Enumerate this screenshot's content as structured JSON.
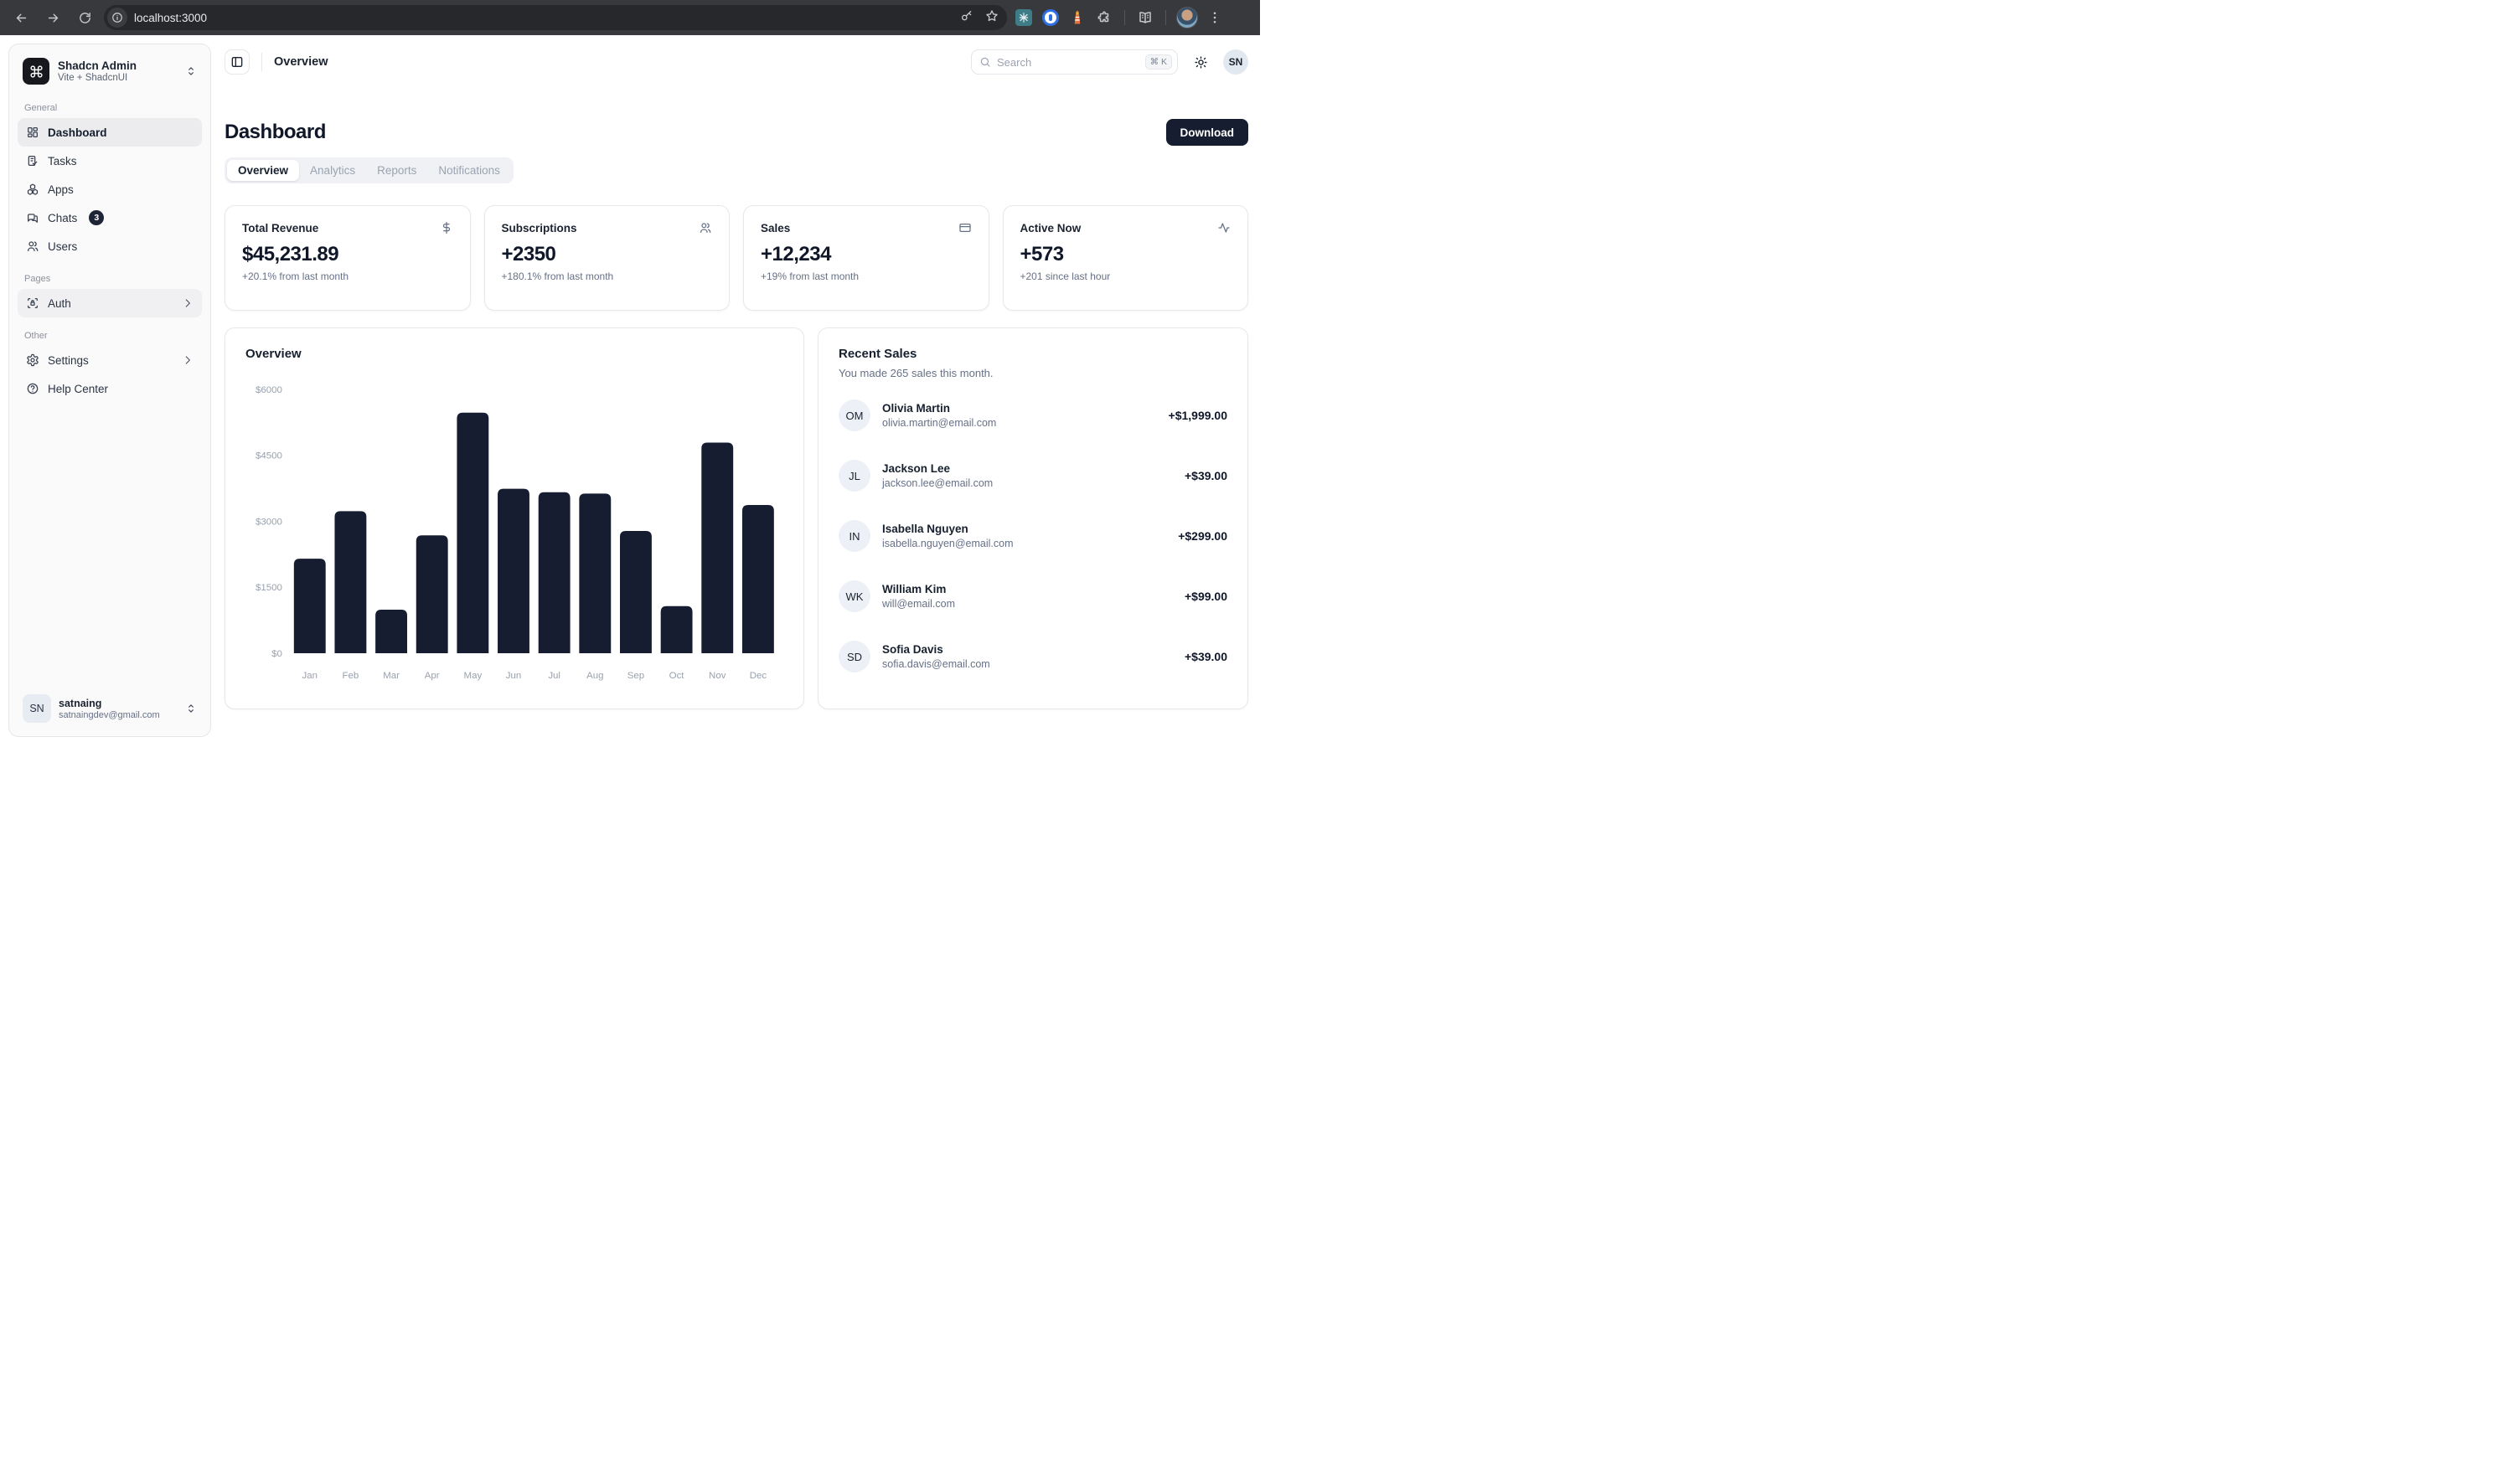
{
  "browser": {
    "url": "localhost:3000",
    "icons": [
      "back",
      "forward",
      "reload",
      "info",
      "key",
      "star",
      "extension-teal",
      "extension-1password",
      "extension-lighthouse",
      "extensions-puzzle",
      "reading-list-book",
      "profile-avatar",
      "menu-dots"
    ]
  },
  "sidebar": {
    "team": {
      "name": "Shadcn Admin",
      "subtitle": "Vite + ShadcnUI",
      "logo_icon": "command"
    },
    "groups": [
      {
        "label": "General",
        "items": [
          {
            "label": "Dashboard",
            "icon": "layout-dashboard",
            "active": true
          },
          {
            "label": "Tasks",
            "icon": "tasks"
          },
          {
            "label": "Apps",
            "icon": "apps"
          },
          {
            "label": "Chats",
            "icon": "messages",
            "badge": "3"
          },
          {
            "label": "Users",
            "icon": "users"
          }
        ]
      },
      {
        "label": "Pages",
        "items": [
          {
            "label": "Auth",
            "icon": "shield-lock",
            "chevron": true,
            "highlight": true
          }
        ]
      },
      {
        "label": "Other",
        "items": [
          {
            "label": "Settings",
            "icon": "settings",
            "chevron": true
          },
          {
            "label": "Help Center",
            "icon": "help-circle"
          }
        ]
      }
    ],
    "user": {
      "initials": "SN",
      "name": "satnaing",
      "email": "satnaingdev@gmail.com"
    }
  },
  "header": {
    "breadcrumb": "Overview",
    "search": {
      "placeholder": "Search",
      "shortcut": "⌘ K"
    },
    "avatar_initials": "SN"
  },
  "page": {
    "title": "Dashboard",
    "download_label": "Download"
  },
  "tabs": [
    {
      "label": "Overview",
      "active": true
    },
    {
      "label": "Analytics",
      "active": false
    },
    {
      "label": "Reports",
      "active": false
    },
    {
      "label": "Notifications",
      "active": false
    }
  ],
  "stats": [
    {
      "label": "Total Revenue",
      "icon": "dollar-sign",
      "value": "$45,231.89",
      "change": "+20.1% from last month"
    },
    {
      "label": "Subscriptions",
      "icon": "users",
      "value": "+2350",
      "change": "+180.1% from last month"
    },
    {
      "label": "Sales",
      "icon": "credit-card",
      "value": "+12,234",
      "change": "+19% from last month"
    },
    {
      "label": "Active Now",
      "icon": "activity",
      "value": "+573",
      "change": "+201 since last hour"
    }
  ],
  "chart_data": {
    "type": "bar",
    "title": "Overview",
    "categories": [
      "Jan",
      "Feb",
      "Mar",
      "Apr",
      "May",
      "Jun",
      "Jul",
      "Aug",
      "Sep",
      "Oct",
      "Nov",
      "Dec"
    ],
    "values": [
      2150,
      3230,
      990,
      2680,
      5470,
      3740,
      3660,
      3630,
      2780,
      1070,
      4790,
      3370
    ],
    "y_ticks": [
      "$0",
      "$1500",
      "$3000",
      "$4500",
      "$6000"
    ],
    "ylim": [
      0,
      6000
    ],
    "xlabel": "",
    "ylabel": "",
    "grid": false,
    "legend": false,
    "bar_color": "#161d30",
    "tick_color": "#98a1ae"
  },
  "recent_sales": {
    "title": "Recent Sales",
    "subtitle": "You made 265 sales this month.",
    "items": [
      {
        "initials": "OM",
        "name": "Olivia Martin",
        "email": "olivia.martin@email.com",
        "amount": "+$1,999.00"
      },
      {
        "initials": "JL",
        "name": "Jackson Lee",
        "email": "jackson.lee@email.com",
        "amount": "+$39.00"
      },
      {
        "initials": "IN",
        "name": "Isabella Nguyen",
        "email": "isabella.nguyen@email.com",
        "amount": "+$299.00"
      },
      {
        "initials": "WK",
        "name": "William Kim",
        "email": "will@email.com",
        "amount": "+$99.00"
      },
      {
        "initials": "SD",
        "name": "Sofia Davis",
        "email": "sofia.davis@email.com",
        "amount": "+$39.00"
      }
    ]
  }
}
